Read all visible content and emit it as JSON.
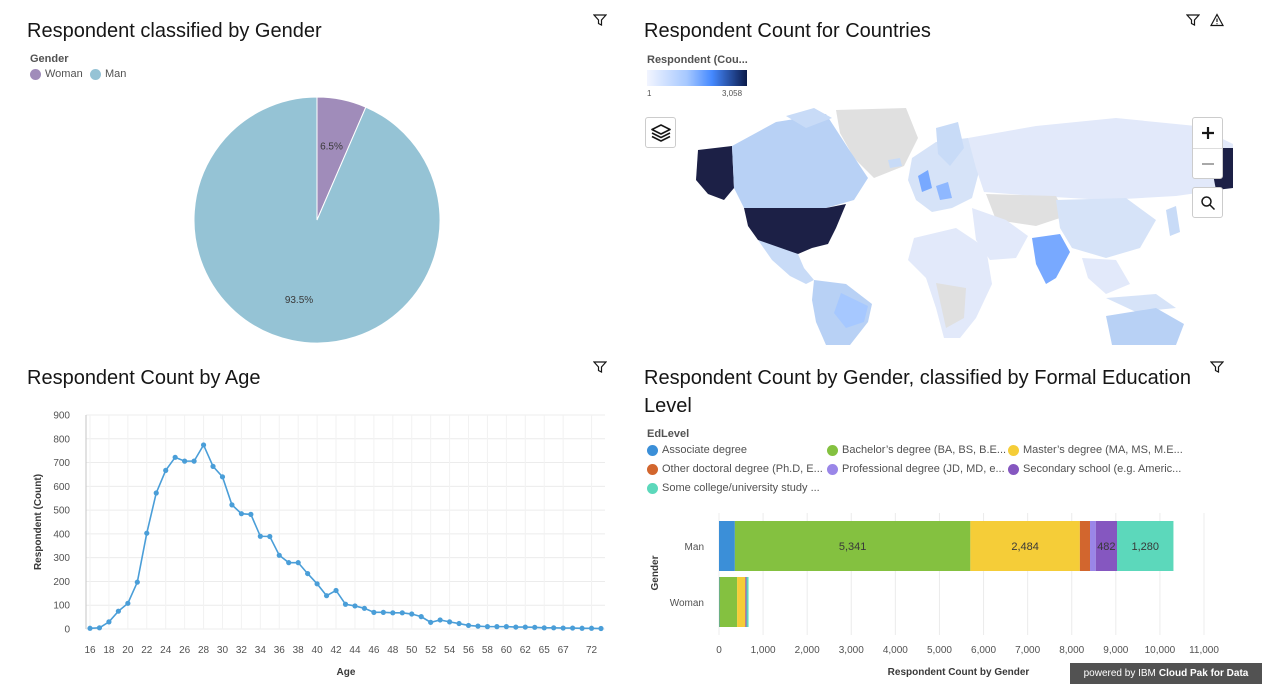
{
  "gender_panel": {
    "title": "Respondent classified by Gender",
    "legend_title": "Gender"
  },
  "countries_panel": {
    "title": "Respondent Count for Countries",
    "legend_title": "Respondent (Cou...",
    "scale_min": "1",
    "scale_max": "3,058",
    "colors": {
      "low": "#e8eefc",
      "mid": "#78a9ff",
      "high": "#0b1a4a",
      "dark_fill": "#1c2046",
      "us": "#1c2046",
      "india": "#78a9ff",
      "greenland": "#e0e0e0"
    }
  },
  "age_panel": {
    "title": "Respondent Count by Age"
  },
  "edu_panel": {
    "title": "Respondent Count by Gender, classified by Formal Education Level",
    "legend_title": "EdLevel"
  },
  "footer": {
    "powered_prefix": "powered by IBM",
    "powered_product": "Cloud Pak for Data"
  },
  "chart_data": [
    {
      "type": "pie",
      "title": "Respondent classified by Gender",
      "legend_title": "Gender",
      "slices": [
        {
          "name": "Woman",
          "value": 6.5,
          "label": "6.5%",
          "color": "#a08cba"
        },
        {
          "name": "Man",
          "value": 93.5,
          "label": "93.5%",
          "color": "#95c3d5"
        }
      ]
    },
    {
      "type": "line",
      "title": "Respondent Count by Age",
      "xlabel": "Age",
      "ylabel": "Respondent (Count)",
      "ylim": [
        0,
        900
      ],
      "yticks": [
        0,
        100,
        200,
        300,
        400,
        500,
        600,
        700,
        800,
        900
      ],
      "xtick_labels": [
        "16",
        "18",
        "20",
        "22",
        "24",
        "26",
        "28",
        "30",
        "32",
        "34",
        "36",
        "38",
        "40",
        "42",
        "44",
        "46",
        "48",
        "50",
        "52",
        "54",
        "56",
        "58",
        "60",
        "62",
        "65",
        "67",
        "72"
      ],
      "color": "#4a9ed8",
      "values": [
        3,
        5,
        30,
        75,
        108,
        197,
        403,
        572,
        667,
        722,
        706,
        706,
        774,
        684,
        640,
        522,
        485,
        482,
        390,
        389,
        310,
        279,
        279,
        233,
        190,
        140,
        162,
        104,
        97,
        87,
        70,
        70,
        68,
        68,
        63,
        52,
        28,
        38,
        30,
        23,
        15,
        12,
        10,
        10,
        10,
        8,
        8,
        7,
        5,
        5,
        4,
        4,
        3,
        3,
        2
      ]
    },
    {
      "type": "bar",
      "orientation": "horizontal",
      "stacked": true,
      "title": "Respondent Count by Gender, classified by Formal Education Level",
      "legend_title": "EdLevel",
      "xlabel": "Respondent Count by Gender",
      "ylabel": "Gender",
      "xlim": [
        0,
        11000
      ],
      "xticks": [
        "0",
        "1,000",
        "2,000",
        "3,000",
        "4,000",
        "5,000",
        "6,000",
        "7,000",
        "8,000",
        "9,000",
        "10,000",
        "11,000"
      ],
      "categories": [
        "Man",
        "Woman"
      ],
      "series": [
        {
          "name": "Associate degree",
          "color": "#3b8fd8",
          "values": [
            360,
            10
          ]
        },
        {
          "name": "Bachelor’s degree (BA, BS, B.E...",
          "color": "#84c140",
          "values": [
            5341,
            400
          ]
        },
        {
          "name": "Master’s degree (MA, MS, M.E...",
          "color": "#f5cd38",
          "values": [
            2484,
            180
          ]
        },
        {
          "name": "Other doctoral degree (Ph.D, E...",
          "color": "#d2662e",
          "values": [
            230,
            12
          ]
        },
        {
          "name": "Professional degree (JD, MD, e...",
          "color": "#9a86e8",
          "values": [
            130,
            8
          ]
        },
        {
          "name": "Secondary school (e.g. Americ...",
          "color": "#8557c0",
          "values": [
            482,
            15
          ]
        },
        {
          "name": "Some college/university study ...",
          "color": "#5cd8bb",
          "values": [
            1280,
            45
          ]
        }
      ],
      "data_labels": {
        "Man": [
          "",
          "5,341",
          "2,484",
          "",
          "",
          "482",
          "1,280"
        ]
      }
    }
  ]
}
